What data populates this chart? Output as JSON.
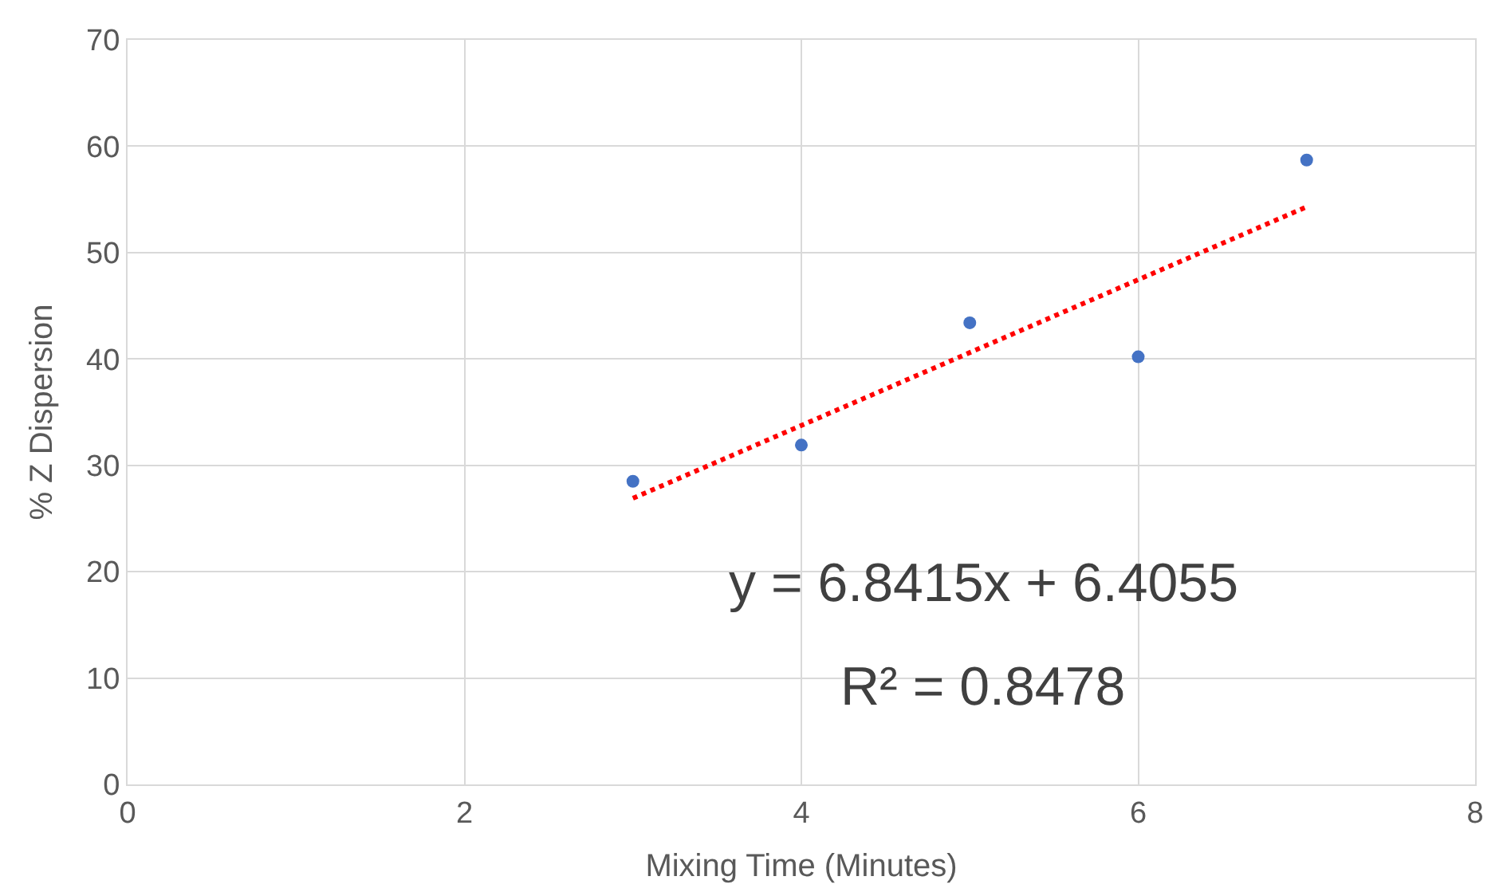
{
  "chart_data": {
    "type": "scatter",
    "xlabel": "Mixing Time (Minutes)",
    "ylabel": "% Z Dispersion",
    "xlim": [
      0,
      8
    ],
    "xticks": [
      0,
      2,
      4,
      6,
      8
    ],
    "ylim": [
      0,
      70
    ],
    "yticks": [
      0,
      10,
      20,
      30,
      40,
      50,
      60,
      70
    ],
    "grid": true,
    "marker": "circle",
    "series": [
      {
        "color": "#4472c4",
        "x": [
          3,
          4,
          5,
          6,
          7
        ],
        "values": [
          28.5,
          31.9,
          43.4,
          40.2,
          58.7
        ]
      },
      {
        "type": "line",
        "color": "#ff0000",
        "line_style": "dotted",
        "marker": "none",
        "x": [
          3,
          7
        ],
        "values": [
          26.9,
          54.3
        ]
      }
    ],
    "annotations": [
      "y = 6.8415x + 6.4055",
      "R² = 0.8478"
    ]
  }
}
